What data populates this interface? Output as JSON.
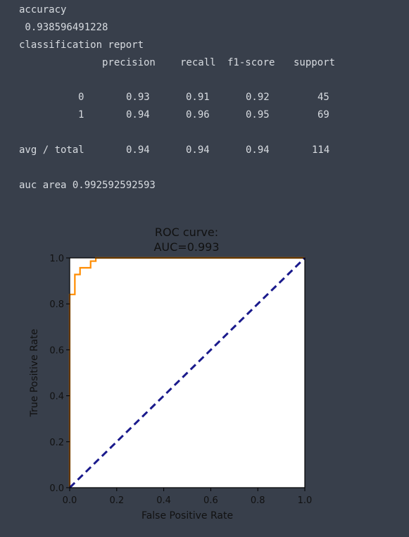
{
  "output": {
    "accuracy_label": "accuracy",
    "accuracy_value": " 0.938596491228",
    "report_label": "classification report",
    "headers": [
      "precision",
      "recall",
      "f1-score",
      "support"
    ],
    "rows": [
      {
        "label": "0",
        "precision": "0.93",
        "recall": "0.91",
        "f1": "0.92",
        "support": "45"
      },
      {
        "label": "1",
        "precision": "0.94",
        "recall": "0.96",
        "f1": "0.95",
        "support": "69"
      }
    ],
    "total": {
      "label": "avg / total",
      "precision": "0.94",
      "recall": "0.94",
      "f1": "0.94",
      "support": "114"
    },
    "auc_line": "auc area 0.992592592593"
  },
  "chart_data": {
    "type": "line",
    "title_line1": "ROC curve:",
    "title_line2": "AUC=0.993",
    "xlabel": "False Positive Rate",
    "ylabel": "True Positive Rate",
    "xlim": [
      0.0,
      1.0
    ],
    "ylim": [
      0.0,
      1.0
    ],
    "xticks": [
      "0.0",
      "0.2",
      "0.4",
      "0.6",
      "0.8",
      "1.0"
    ],
    "yticks": [
      "0.0",
      "0.2",
      "0.4",
      "0.6",
      "0.8",
      "1.0"
    ],
    "grid": false,
    "series": [
      {
        "color": "#ff8c00",
        "style": "solid",
        "x": [
          0.0,
          0.0,
          0.022,
          0.022,
          0.044,
          0.044,
          0.089,
          0.089,
          0.111,
          0.111,
          1.0
        ],
        "y": [
          0.0,
          0.841,
          0.841,
          0.928,
          0.928,
          0.957,
          0.957,
          0.986,
          0.986,
          1.0,
          1.0
        ]
      },
      {
        "color": "#1a1a8c",
        "style": "dashed",
        "x": [
          0.0,
          1.0
        ],
        "y": [
          0.0,
          1.0
        ]
      }
    ]
  }
}
